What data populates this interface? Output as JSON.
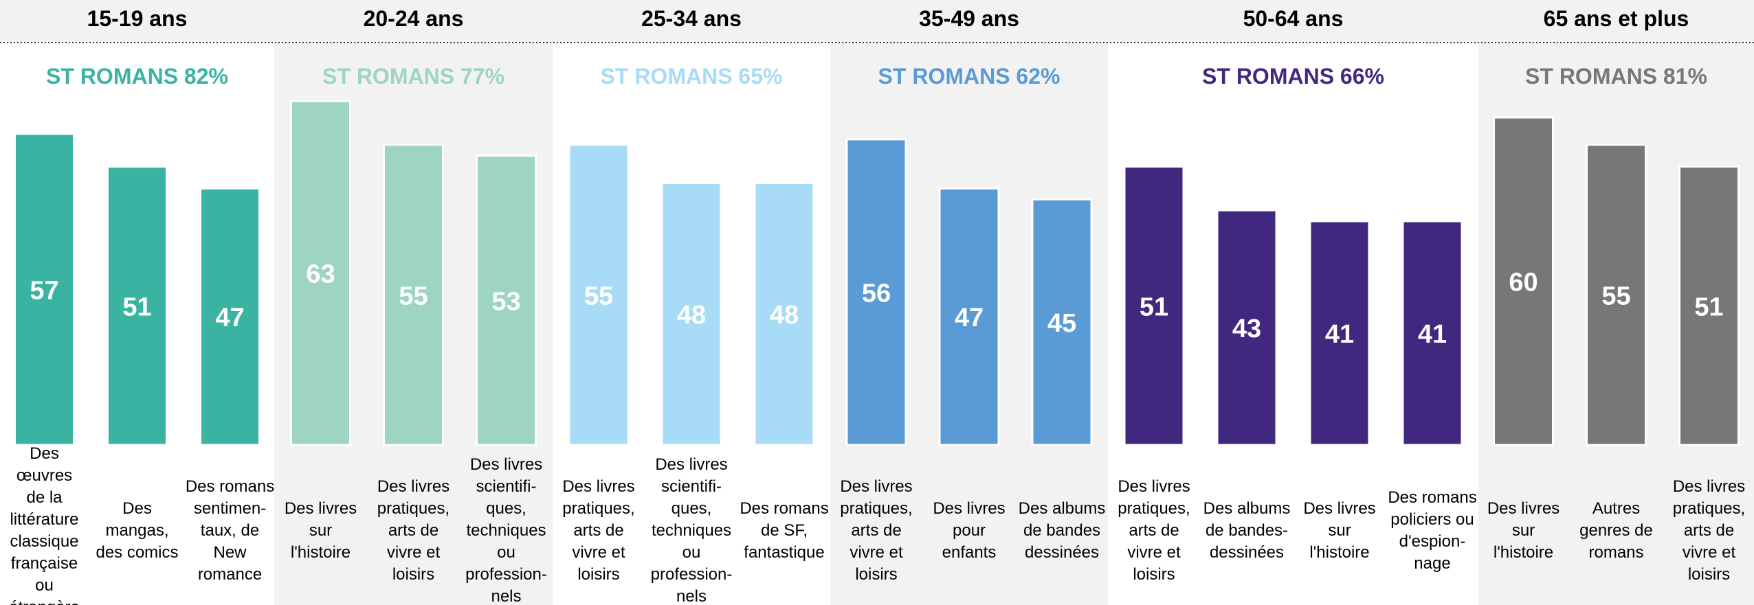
{
  "chart_data": [
    {
      "type": "bar",
      "title": "15-19 ans",
      "subtitle": "ST ROMANS 82%",
      "color": "#3bb3a3",
      "categories": [
        "Des œuvres\nde la\nlittérature\nclassique\nfrançaise\nou\nétrangère",
        "Des\nmangas,\ndes comics",
        "Des romans\nsentimen-\ntaux, de\nNew\nromance"
      ],
      "values": [
        57,
        51,
        47
      ]
    },
    {
      "type": "bar",
      "title": "20-24 ans",
      "subtitle": "ST ROMANS 77%",
      "color": "#9dd4c2",
      "categories": [
        "Des livres\nsur\nl'histoire",
        "Des livres\npratiques,\narts de\nvivre et\nloisirs",
        "Des livres\nscientifi-\nques,\ntechniques\nou\nprofession-\nnels"
      ],
      "values": [
        63,
        55,
        53
      ]
    },
    {
      "type": "bar",
      "title": "25-34 ans",
      "subtitle": "ST ROMANS 65%",
      "color": "#a8dbf5",
      "categories": [
        "Des livres\npratiques,\narts de\nvivre et\nloisirs",
        "Des livres\nscientifi-\nques,\ntechniques\nou\nprofession-\nnels",
        "Des romans\nde SF,\nfantastique"
      ],
      "values": [
        55,
        48,
        48
      ]
    },
    {
      "type": "bar",
      "title": "35-49 ans",
      "subtitle": "ST ROMANS 62%",
      "color": "#5b9bd5",
      "categories": [
        "Des livres\npratiques,\narts de\nvivre et\nloisirs",
        "Des livres\npour\nenfants",
        "Des albums\nde bandes\ndessinées"
      ],
      "values": [
        56,
        47,
        45
      ]
    },
    {
      "type": "bar",
      "title": "50-64 ans",
      "subtitle": "ST ROMANS 66%",
      "color": "#41287f",
      "categories": [
        "Des livres\npratiques,\narts de\nvivre et\nloisirs",
        "Des albums\nde bandes-\ndessinées",
        "Des livres\nsur\nl'histoire",
        "Des romans\npoliciers ou\nd'espion-\nnage"
      ],
      "values": [
        51,
        43,
        41,
        41
      ]
    },
    {
      "type": "bar",
      "title": "65 ans et plus",
      "subtitle": "ST ROMANS 81%",
      "color": "#777777",
      "categories": [
        "Des livres\nsur\nl'histoire",
        "Autres\ngenres de\nromans",
        "Des livres\npratiques,\narts de\nvivre et\nloisirs"
      ],
      "values": [
        60,
        55,
        51
      ]
    }
  ]
}
